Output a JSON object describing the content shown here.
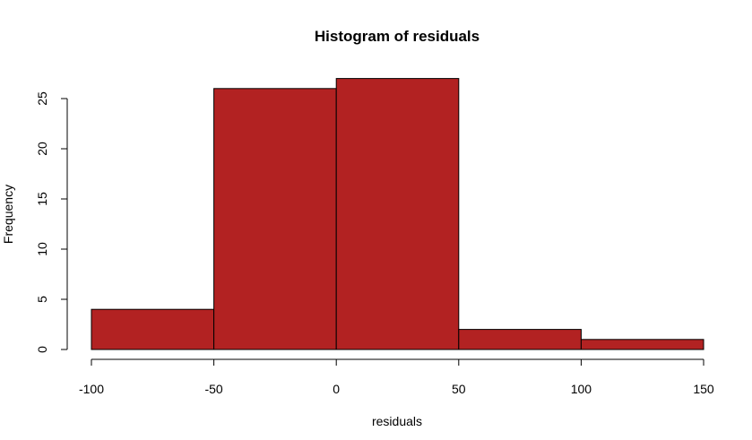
{
  "chart_data": {
    "type": "bar",
    "title": "Histogram of residuals",
    "xlabel": "residuals",
    "ylabel": "Frequency",
    "bin_edges": [
      -100,
      -50,
      0,
      50,
      100,
      150
    ],
    "values": [
      4,
      26,
      27,
      2,
      1
    ],
    "x_ticks": [
      "-100",
      "-50",
      "0",
      "50",
      "100",
      "150"
    ],
    "y_ticks": [
      "0",
      "5",
      "10",
      "15",
      "20",
      "25"
    ],
    "xlim": [
      -100,
      150
    ],
    "ylim": [
      0,
      27
    ],
    "grid": false,
    "bar_color": "#b22222",
    "bar_border_color": "#000000"
  }
}
